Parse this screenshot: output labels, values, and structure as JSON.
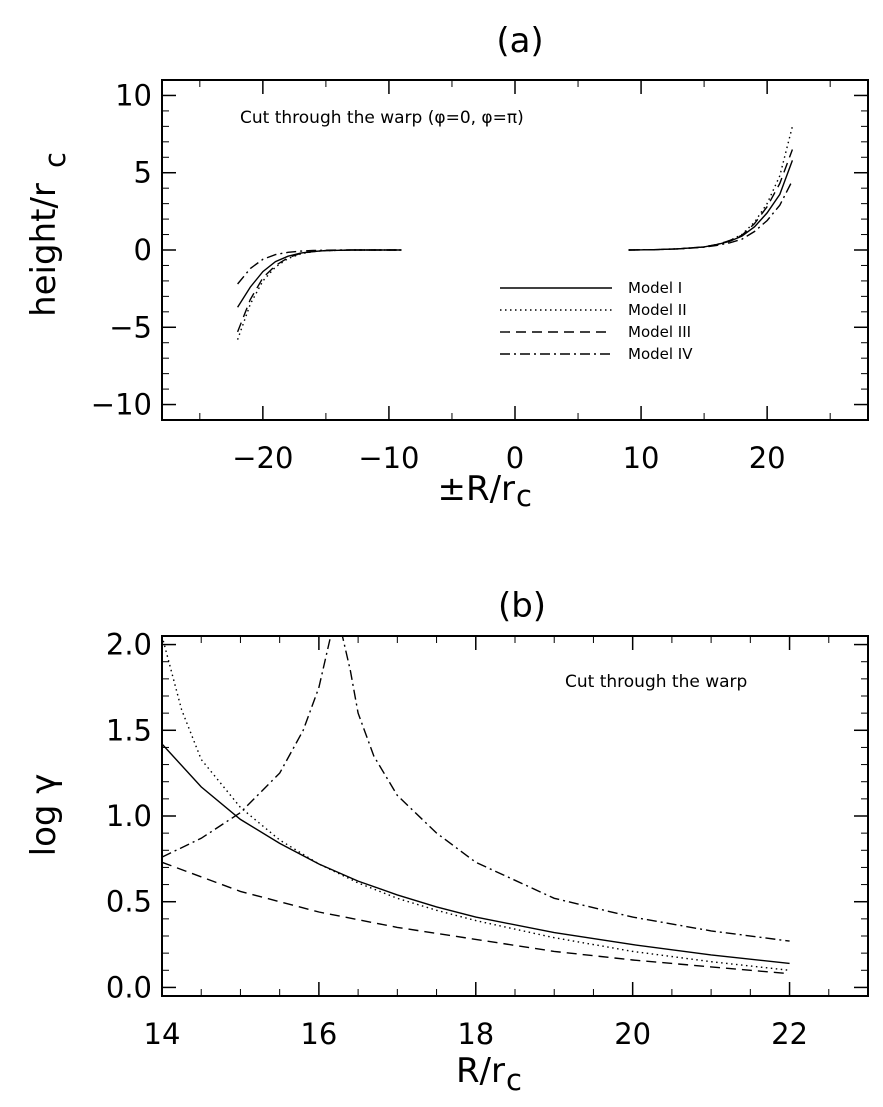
{
  "panels": [
    {
      "label": "(a)",
      "xlabel": "±R/r",
      "xlabel_sub": "c",
      "ylabel": "height/r",
      "ylabel_sub": "c",
      "annotation": "Cut through the warp (φ=0, φ=π)"
    },
    {
      "label": "(b)",
      "xlabel": "R/r",
      "xlabel_sub": "c",
      "ylabel": "log γ",
      "annotation": "Cut through the warp"
    }
  ],
  "chart_data": [
    {
      "type": "line",
      "title": "(a)",
      "xlabel": "±R/r_c",
      "ylabel": "height/r_c",
      "xlim": [
        -28,
        28
      ],
      "ylim": [
        -11,
        11
      ],
      "xticks": [
        -20,
        -10,
        0,
        10,
        20
      ],
      "ytick_labels": [
        "10",
        "5",
        "0",
        "−5",
        "−10"
      ],
      "yticks": [
        10,
        5,
        0,
        -5,
        -10
      ],
      "xtick_labels": [
        "−20",
        "−10",
        "0",
        "10",
        "20"
      ],
      "grid": false,
      "legend_position": "center-right",
      "series": [
        {
          "name": "Model I",
          "dash": "solid",
          "left": {
            "x": [
              -22,
              -21,
              -20,
              -19,
              -18,
              -17,
              -16,
              -15,
              -14,
              -13,
              -12,
              -11,
              -10,
              -9
            ],
            "y": [
              -3.7,
              -2.4,
              -1.4,
              -0.75,
              -0.4,
              -0.2,
              -0.1,
              -0.04,
              -0.02,
              0,
              0,
              0,
              0,
              0
            ]
          },
          "right": {
            "x": [
              9,
              11,
              13,
              15,
              16,
              17,
              18,
              19,
              20,
              21,
              22
            ],
            "y": [
              0,
              0.02,
              0.08,
              0.2,
              0.35,
              0.55,
              0.9,
              1.5,
              2.4,
              3.6,
              5.8
            ]
          }
        },
        {
          "name": "Model II",
          "dash": "dotted",
          "left": {
            "x": [
              -22,
              -21,
              -20,
              -19,
              -18,
              -17,
              -16,
              -15,
              -14,
              -13,
              -12,
              -11,
              -10,
              -9
            ],
            "y": [
              -5.8,
              -3.5,
              -2.0,
              -1.1,
              -0.55,
              -0.25,
              -0.1,
              -0.04,
              -0.02,
              0,
              0,
              0,
              0,
              0
            ]
          },
          "right": {
            "x": [
              9,
              11,
              13,
              15,
              16,
              17,
              18,
              19,
              20,
              21,
              22
            ],
            "y": [
              0,
              0.02,
              0.08,
              0.2,
              0.35,
              0.6,
              1.0,
              1.8,
              3.0,
              4.8,
              8.0
            ]
          }
        },
        {
          "name": "Model III",
          "dash": "dashed",
          "left": {
            "x": [
              -22,
              -21,
              -20,
              -19,
              -18,
              -17,
              -16,
              -15,
              -14,
              -13,
              -12,
              -11,
              -10,
              -9
            ],
            "y": [
              -5.3,
              -3.2,
              -1.8,
              -1.0,
              -0.5,
              -0.22,
              -0.1,
              -0.04,
              -0.02,
              0,
              0,
              0,
              0,
              0
            ]
          },
          "right": {
            "x": [
              9,
              11,
              13,
              15,
              16,
              17,
              18,
              19,
              20,
              21,
              22
            ],
            "y": [
              0,
              0.02,
              0.08,
              0.2,
              0.35,
              0.6,
              0.95,
              1.7,
              2.8,
              4.3,
              6.5
            ]
          }
        },
        {
          "name": "Model IV",
          "dash": "dashdot",
          "left": {
            "x": [
              -22,
              -21,
              -20,
              -19,
              -18,
              -17,
              -16,
              -15,
              -14,
              -13,
              -12,
              -11,
              -10,
              -9
            ],
            "y": [
              -2.2,
              -1.2,
              -0.6,
              -0.3,
              -0.15,
              -0.07,
              -0.03,
              -0.01,
              0,
              0,
              0,
              0,
              0,
              0
            ]
          },
          "right": {
            "x": [
              9,
              11,
              13,
              15,
              16,
              17,
              18,
              19,
              20,
              21,
              22
            ],
            "y": [
              0,
              0.02,
              0.07,
              0.18,
              0.3,
              0.45,
              0.7,
              1.2,
              1.9,
              2.9,
              4.5
            ]
          }
        }
      ]
    },
    {
      "type": "line",
      "title": "(b)",
      "xlabel": "R/r_c",
      "ylabel": "log γ",
      "xlim": [
        14,
        23
      ],
      "ylim": [
        -0.05,
        2.05
      ],
      "xticks": [
        14,
        16,
        18,
        20,
        22
      ],
      "xtick_labels": [
        "14",
        "16",
        "18",
        "20",
        "22"
      ],
      "yticks": [
        0.0,
        0.5,
        1.0,
        1.5,
        2.0
      ],
      "ytick_labels": [
        "0.0",
        "0.5",
        "1.0",
        "1.5",
        "2.0"
      ],
      "grid": false,
      "series": [
        {
          "dash": "solid",
          "x": [
            14,
            14.5,
            15,
            15.5,
            16,
            16.5,
            17,
            17.5,
            18,
            19,
            20,
            21,
            22
          ],
          "y": [
            1.42,
            1.17,
            0.98,
            0.84,
            0.72,
            0.62,
            0.54,
            0.47,
            0.41,
            0.32,
            0.25,
            0.19,
            0.14
          ]
        },
        {
          "dash": "dotted",
          "x": [
            14,
            14.25,
            14.5,
            15,
            15.5,
            16,
            16.5,
            17,
            17.5,
            18,
            19,
            20,
            21,
            22
          ],
          "y": [
            2.05,
            1.62,
            1.33,
            1.05,
            0.86,
            0.72,
            0.61,
            0.52,
            0.45,
            0.39,
            0.29,
            0.21,
            0.15,
            0.1
          ]
        },
        {
          "dash": "dashed",
          "x": [
            14,
            15,
            16,
            17,
            18,
            19,
            20,
            21,
            22
          ],
          "y": [
            0.73,
            0.56,
            0.44,
            0.35,
            0.28,
            0.21,
            0.16,
            0.12,
            0.08
          ]
        },
        {
          "dash": "dashdot",
          "x": [
            14,
            14.5,
            15,
            15.5,
            15.8,
            16.0,
            16.15,
            16.25,
            16.3,
            16.4,
            16.5,
            16.7,
            17,
            17.5,
            18,
            19,
            20,
            21,
            22
          ],
          "y": [
            0.76,
            0.87,
            1.02,
            1.25,
            1.5,
            1.75,
            2.05,
            2.05,
            2.05,
            1.85,
            1.6,
            1.35,
            1.12,
            0.9,
            0.73,
            0.52,
            0.41,
            0.33,
            0.27
          ]
        }
      ]
    }
  ]
}
